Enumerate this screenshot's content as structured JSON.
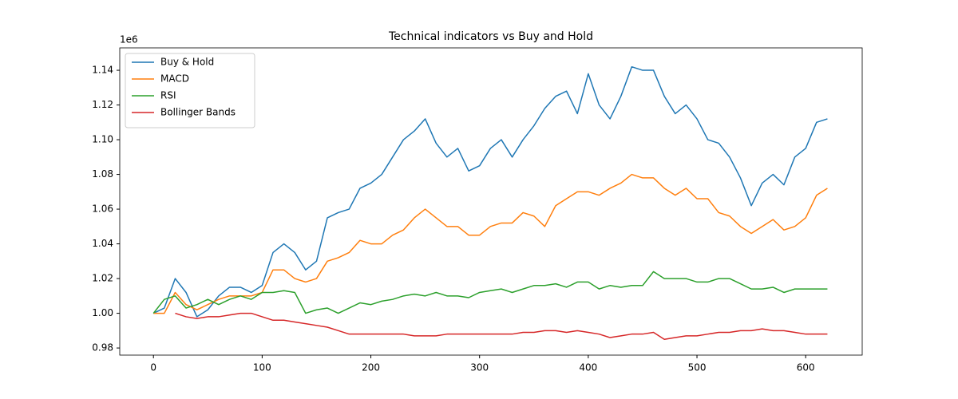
{
  "chart_data": {
    "type": "line",
    "title": "Technical indicators vs Buy and Hold",
    "y_offset_label": "1e6",
    "x": [
      0,
      10,
      20,
      30,
      40,
      50,
      60,
      70,
      80,
      90,
      100,
      110,
      120,
      130,
      140,
      150,
      160,
      170,
      180,
      190,
      200,
      210,
      220,
      230,
      240,
      250,
      260,
      270,
      280,
      290,
      300,
      310,
      320,
      330,
      340,
      350,
      360,
      370,
      380,
      390,
      400,
      410,
      420,
      430,
      440,
      450,
      460,
      470,
      480,
      490,
      500,
      510,
      520,
      530,
      540,
      550,
      560,
      570,
      580,
      590,
      600,
      610,
      620
    ],
    "series": [
      {
        "name": "Buy & Hold",
        "color": "#1f77b4",
        "values": [
          1000000,
          1003000,
          1020000,
          1012000,
          998000,
          1002000,
          1010000,
          1015000,
          1015000,
          1012000,
          1016000,
          1035000,
          1040000,
          1035000,
          1025000,
          1030000,
          1055000,
          1058000,
          1060000,
          1072000,
          1075000,
          1080000,
          1090000,
          1100000,
          1105000,
          1112000,
          1098000,
          1090000,
          1095000,
          1082000,
          1085000,
          1095000,
          1100000,
          1090000,
          1100000,
          1108000,
          1118000,
          1125000,
          1128000,
          1115000,
          1138000,
          1120000,
          1112000,
          1125000,
          1142000,
          1140000,
          1140000,
          1125000,
          1115000,
          1120000,
          1112000,
          1100000,
          1098000,
          1090000,
          1078000,
          1062000,
          1075000,
          1080000,
          1074000,
          1090000,
          1095000,
          1110000,
          1112000
        ]
      },
      {
        "name": "MACD",
        "color": "#ff7f0e",
        "values": [
          1000000,
          1000000,
          1012000,
          1005000,
          1002000,
          1005000,
          1008000,
          1010000,
          1010000,
          1010000,
          1012000,
          1025000,
          1025000,
          1020000,
          1018000,
          1020000,
          1030000,
          1032000,
          1035000,
          1042000,
          1040000,
          1040000,
          1045000,
          1048000,
          1055000,
          1060000,
          1055000,
          1050000,
          1050000,
          1045000,
          1045000,
          1050000,
          1052000,
          1052000,
          1058000,
          1056000,
          1050000,
          1062000,
          1066000,
          1070000,
          1070000,
          1068000,
          1072000,
          1075000,
          1080000,
          1078000,
          1078000,
          1072000,
          1068000,
          1072000,
          1066000,
          1066000,
          1058000,
          1056000,
          1050000,
          1046000,
          1050000,
          1054000,
          1048000,
          1050000,
          1055000,
          1068000,
          1072000
        ]
      },
      {
        "name": "RSI",
        "color": "#2ca02c",
        "values": [
          1000000,
          1008000,
          1010000,
          1003000,
          1005000,
          1008000,
          1005000,
          1008000,
          1010000,
          1008000,
          1012000,
          1012000,
          1013000,
          1012000,
          1000000,
          1002000,
          1003000,
          1000000,
          1003000,
          1006000,
          1005000,
          1007000,
          1008000,
          1010000,
          1011000,
          1010000,
          1012000,
          1010000,
          1010000,
          1009000,
          1012000,
          1013000,
          1014000,
          1012000,
          1014000,
          1016000,
          1016000,
          1017000,
          1015000,
          1018000,
          1018000,
          1014000,
          1016000,
          1015000,
          1016000,
          1016000,
          1024000,
          1020000,
          1020000,
          1020000,
          1018000,
          1018000,
          1020000,
          1020000,
          1017000,
          1014000,
          1014000,
          1015000,
          1012000,
          1014000,
          1014000,
          1014000,
          1014000
        ]
      },
      {
        "name": "Bollinger Bands",
        "color": "#d62728",
        "values": [
          null,
          null,
          1000000,
          998000,
          997000,
          998000,
          998000,
          999000,
          1000000,
          1000000,
          998000,
          996000,
          996000,
          995000,
          994000,
          993000,
          992000,
          990000,
          988000,
          988000,
          988000,
          988000,
          988000,
          988000,
          987000,
          987000,
          987000,
          988000,
          988000,
          988000,
          988000,
          988000,
          988000,
          988000,
          989000,
          989000,
          990000,
          990000,
          989000,
          990000,
          989000,
          988000,
          986000,
          987000,
          988000,
          988000,
          989000,
          985000,
          986000,
          987000,
          987000,
          988000,
          989000,
          989000,
          990000,
          990000,
          991000,
          990000,
          990000,
          989000,
          988000,
          988000,
          988000
        ]
      }
    ],
    "xlim": [
      -31,
      652
    ],
    "xticks": [
      0,
      100,
      200,
      300,
      400,
      500,
      600
    ],
    "ylim": [
      975900,
      1152900
    ],
    "yticks": [
      {
        "value": 980000,
        "label": "0.98"
      },
      {
        "value": 1000000,
        "label": "1.00"
      },
      {
        "value": 1020000,
        "label": "1.02"
      },
      {
        "value": 1040000,
        "label": "1.04"
      },
      {
        "value": 1060000,
        "label": "1.06"
      },
      {
        "value": 1080000,
        "label": "1.08"
      },
      {
        "value": 1100000,
        "label": "1.10"
      },
      {
        "value": 1120000,
        "label": "1.12"
      },
      {
        "value": 1140000,
        "label": "1.14"
      }
    ],
    "legend": "upper left",
    "grid": false
  }
}
